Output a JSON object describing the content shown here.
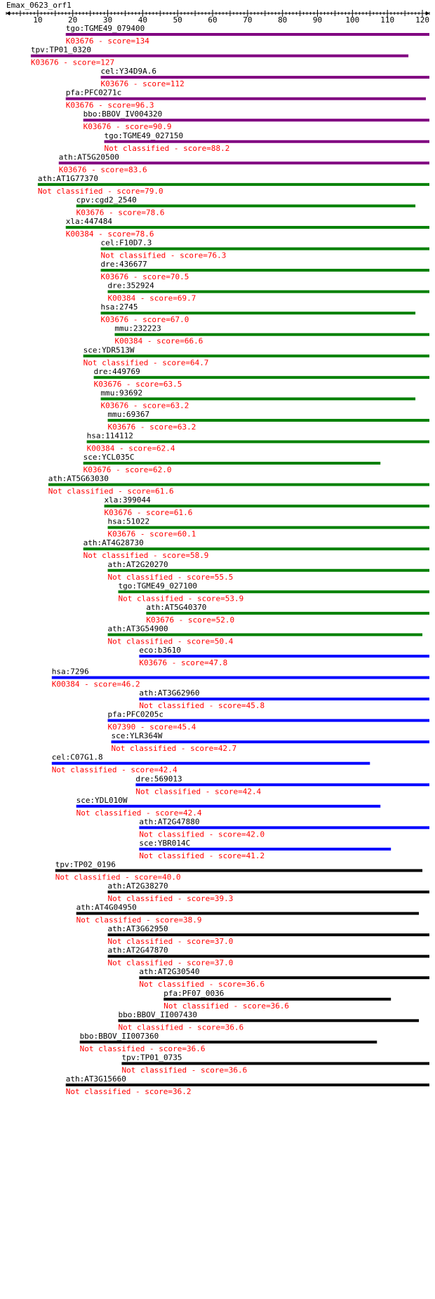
{
  "header": {
    "title": "Emax_0623_orf1"
  },
  "ruler": {
    "min": 1,
    "max": 122,
    "ticks": [
      10,
      20,
      30,
      40,
      50,
      60,
      70,
      80,
      90,
      100,
      110,
      120
    ]
  },
  "colors": {
    "text": "#000000",
    "score_text": "#ff0000",
    "purple": "#800080",
    "green": "#008000",
    "blue": "#0000ff",
    "black": "#000000"
  },
  "hits": [
    {
      "label": "tgo:TGME49_079400",
      "subtitle": "K03676 - score=134",
      "start": 18,
      "end": 122,
      "color": "purple"
    },
    {
      "label": "tpv:TP01_0320",
      "subtitle": "K03676 - score=127",
      "start": 8,
      "end": 116,
      "color": "purple"
    },
    {
      "label": "cel:Y34D9A.6",
      "subtitle": "K03676 - score=112",
      "start": 28,
      "end": 122,
      "color": "purple"
    },
    {
      "label": "pfa:PFC0271c",
      "subtitle": "K03676 - score=96.3",
      "start": 18,
      "end": 121,
      "color": "purple"
    },
    {
      "label": "bbo:BBOV_IV004320",
      "subtitle": "K03676 - score=90.9",
      "start": 23,
      "end": 122,
      "color": "purple"
    },
    {
      "label": "tgo:TGME49_027150",
      "subtitle": "Not classified - score=88.2",
      "start": 29,
      "end": 122,
      "color": "purple"
    },
    {
      "label": "ath:AT5G20500",
      "subtitle": "K03676 - score=83.6",
      "start": 16,
      "end": 122,
      "color": "purple"
    },
    {
      "label": "ath:AT1G77370",
      "subtitle": "Not classified - score=79.0",
      "start": 10,
      "end": 122,
      "color": "green"
    },
    {
      "label": "cpv:cgd2_2540",
      "subtitle": "K03676 - score=78.6",
      "start": 21,
      "end": 118,
      "color": "green"
    },
    {
      "label": "xla:447484",
      "subtitle": "K00384 - score=78.6",
      "start": 18,
      "end": 122,
      "color": "green"
    },
    {
      "label": "cel:F10D7.3",
      "subtitle": "Not classified - score=76.3",
      "start": 28,
      "end": 122,
      "color": "green"
    },
    {
      "label": "dre:436677",
      "subtitle": "K03676 - score=70.5",
      "start": 28,
      "end": 122,
      "color": "green"
    },
    {
      "label": "dre:352924",
      "subtitle": "K00384 - score=69.7",
      "start": 30,
      "end": 122,
      "color": "green"
    },
    {
      "label": "hsa:2745",
      "subtitle": "K03676 - score=67.0",
      "start": 28,
      "end": 118,
      "color": "green"
    },
    {
      "label": "mmu:232223",
      "subtitle": "K00384 - score=66.6",
      "start": 32,
      "end": 122,
      "color": "green"
    },
    {
      "label": "sce:YDR513W",
      "subtitle": "Not classified - score=64.7",
      "start": 23,
      "end": 122,
      "color": "green"
    },
    {
      "label": "dre:449769",
      "subtitle": "K03676 - score=63.5",
      "start": 26,
      "end": 122,
      "color": "green"
    },
    {
      "label": "mmu:93692",
      "subtitle": "K03676 - score=63.2",
      "start": 28,
      "end": 118,
      "color": "green"
    },
    {
      "label": "mmu:69367",
      "subtitle": "K03676 - score=63.2",
      "start": 30,
      "end": 122,
      "color": "green"
    },
    {
      "label": "hsa:114112",
      "subtitle": "K00384 - score=62.4",
      "start": 24,
      "end": 122,
      "color": "green"
    },
    {
      "label": "sce:YCL035C",
      "subtitle": "K03676 - score=62.0",
      "start": 23,
      "end": 108,
      "color": "green"
    },
    {
      "label": "ath:AT5G63030",
      "subtitle": "Not classified - score=61.6",
      "start": 13,
      "end": 122,
      "color": "green"
    },
    {
      "label": "xla:399044",
      "subtitle": "K03676 - score=61.6",
      "start": 29,
      "end": 122,
      "color": "green"
    },
    {
      "label": "hsa:51022",
      "subtitle": "K03676 - score=60.1",
      "start": 30,
      "end": 122,
      "color": "green"
    },
    {
      "label": "ath:AT4G28730",
      "subtitle": "Not classified - score=58.9",
      "start": 23,
      "end": 122,
      "color": "green"
    },
    {
      "label": "ath:AT2G20270",
      "subtitle": "Not classified - score=55.5",
      "start": 30,
      "end": 122,
      "color": "green"
    },
    {
      "label": "tgo:TGME49_027100",
      "subtitle": "Not classified - score=53.9",
      "start": 33,
      "end": 122,
      "color": "green"
    },
    {
      "label": "ath:AT5G40370",
      "subtitle": "K03676 - score=52.0",
      "start": 41,
      "end": 122,
      "color": "green"
    },
    {
      "label": "ath:AT3G54900",
      "subtitle": "Not classified - score=50.4",
      "start": 30,
      "end": 120,
      "color": "green"
    },
    {
      "label": "eco:b3610",
      "subtitle": "K03676 - score=47.8",
      "start": 39,
      "end": 122,
      "color": "blue"
    },
    {
      "label": "hsa:7296",
      "subtitle": "K00384 - score=46.2",
      "start": 14,
      "end": 122,
      "color": "blue"
    },
    {
      "label": "ath:AT3G62960",
      "subtitle": "Not classified - score=45.8",
      "start": 39,
      "end": 122,
      "color": "blue"
    },
    {
      "label": "pfa:PFC0205c",
      "subtitle": "K07390 - score=45.4",
      "start": 30,
      "end": 122,
      "color": "blue"
    },
    {
      "label": "sce:YLR364W",
      "subtitle": "Not classified - score=42.7",
      "start": 31,
      "end": 122,
      "color": "blue"
    },
    {
      "label": "cel:C07G1.8",
      "subtitle": "Not classified - score=42.4",
      "start": 14,
      "end": 105,
      "color": "blue"
    },
    {
      "label": "dre:569013",
      "subtitle": "Not classified - score=42.4",
      "start": 38,
      "end": 122,
      "color": "blue"
    },
    {
      "label": "sce:YDL010W",
      "subtitle": "Not classified - score=42.4",
      "start": 21,
      "end": 108,
      "color": "blue"
    },
    {
      "label": "ath:AT2G47880",
      "subtitle": "Not classified - score=42.0",
      "start": 39,
      "end": 122,
      "color": "blue"
    },
    {
      "label": "sce:YBR014C",
      "subtitle": "Not classified - score=41.2",
      "start": 39,
      "end": 111,
      "color": "blue"
    },
    {
      "label": "tpv:TP02_0196",
      "subtitle": "Not classified - score=40.0",
      "start": 15,
      "end": 120,
      "color": "black"
    },
    {
      "label": "ath:AT2G38270",
      "subtitle": "Not classified - score=39.3",
      "start": 30,
      "end": 122,
      "color": "black"
    },
    {
      "label": "ath:AT4G04950",
      "subtitle": "Not classified - score=38.9",
      "start": 21,
      "end": 119,
      "color": "black"
    },
    {
      "label": "ath:AT3G62950",
      "subtitle": "Not classified - score=37.0",
      "start": 30,
      "end": 122,
      "color": "black"
    },
    {
      "label": "ath:AT2G47870",
      "subtitle": "Not classified - score=37.0",
      "start": 30,
      "end": 122,
      "color": "black"
    },
    {
      "label": "ath:AT2G30540",
      "subtitle": "Not classified - score=36.6",
      "start": 39,
      "end": 122,
      "color": "black"
    },
    {
      "label": "pfa:PF07_0036",
      "subtitle": "Not classified - score=36.6",
      "start": 46,
      "end": 111,
      "color": "black"
    },
    {
      "label": "bbo:BBOV_II007430",
      "subtitle": "Not classified - score=36.6",
      "start": 33,
      "end": 119,
      "color": "black"
    },
    {
      "label": "bbo:BBOV_II007360",
      "subtitle": "Not classified - score=36.6",
      "start": 22,
      "end": 107,
      "color": "black"
    },
    {
      "label": "tpv:TP01_0735",
      "subtitle": "Not classified - score=36.6",
      "start": 34,
      "end": 122,
      "color": "black"
    },
    {
      "label": "ath:AT3G15660",
      "subtitle": "Not classified - score=36.2",
      "start": 18,
      "end": 122,
      "color": "black"
    }
  ]
}
